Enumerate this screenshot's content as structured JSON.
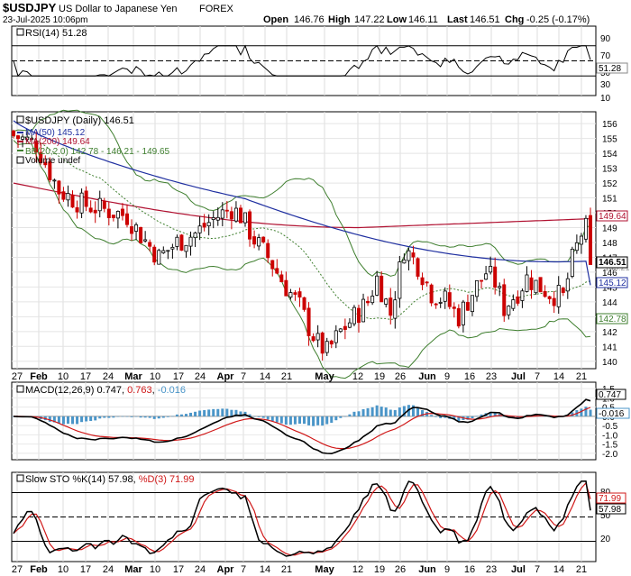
{
  "header": {
    "symbol": "$USDJPY",
    "name": "US Dollar to Japanese Yen",
    "exchange": "FOREX",
    "date": "23-Jul-2025 10:06pm",
    "open_label": "Open",
    "open": "146.76",
    "high_label": "High",
    "high": "147.22",
    "low_label": "Low",
    "low": "146.11",
    "last_label": "Last",
    "last": "146.51",
    "chg_label": "Chg",
    "chg": "-0.25 (-0.17%)"
  },
  "rsi": {
    "legend": "RSI(14) 51.28",
    "ticks": [
      90,
      70,
      50,
      30,
      10
    ],
    "last_badge": "51.28"
  },
  "price": {
    "legend_title": "$USDJPY (Daily) 146.51",
    "legend_ma50": "MA(50) 145.12",
    "legend_ma200": "MA(200) 149.64",
    "legend_bb": "BB(20,2.0) 142.78 - 146.21 - 149.65",
    "legend_volume": "Volume undef",
    "ticks": [
      156,
      155,
      154,
      153,
      152,
      151,
      150,
      149,
      148,
      147,
      146,
      145,
      144,
      143,
      142,
      141,
      140
    ],
    "badges": {
      "ma200": "149.64",
      "last": "146.51",
      "ma50": "145.12",
      "bb_lower": "142.78",
      "bb_mid": "146.21"
    }
  },
  "macd": {
    "legend_prefix": "MACD(12,26,9) 0.747, ",
    "legend_signal": "0.763",
    "legend_sep": ", ",
    "legend_hist": "-0.016",
    "ticks": [
      "1.5",
      "1.0",
      "0.5",
      "0.0",
      "-0.5",
      "-1.0",
      "-1.5",
      "-2.0"
    ],
    "badges": {
      "macd": "0.747",
      "hist": "-0.016"
    }
  },
  "sto": {
    "legend_prefix": "Slow STO %K(14) ",
    "legend_k": "57.98",
    "legend_sep": ", ",
    "legend_d": "%D(3) 71.99",
    "ticks": [
      80,
      50,
      20
    ],
    "badges": {
      "d": "71.99",
      "k": "57.98"
    }
  },
  "x_labels": [
    "27",
    "Feb",
    "10",
    "17",
    "24",
    "Mar",
    "10",
    "17",
    "24",
    "Apr",
    "7",
    "14",
    "21",
    "May",
    "12",
    "19",
    "26",
    "Jun",
    "9",
    "16",
    "23",
    "Jul",
    "7",
    "14",
    "21"
  ],
  "colors": {
    "bb": "#3f7f2f",
    "ma50": "#1f2fa0",
    "ma200": "#b01030",
    "macd_signal": "#d01818",
    "macd_hist": "#4a95c8",
    "sto_d": "#d01818"
  },
  "chart_data": {
    "type": "line",
    "ohlc_close": [
      {
        "date": "2025-01-28",
        "close": 155.2
      },
      {
        "date": "2025-02-03",
        "close": 154.6
      },
      {
        "date": "2025-02-10",
        "close": 152.3
      },
      {
        "date": "2025-02-17",
        "close": 150.3
      },
      {
        "date": "2025-02-24",
        "close": 150.6
      },
      {
        "date": "2025-03-03",
        "close": 148.0
      },
      {
        "date": "2025-03-10",
        "close": 148.6
      },
      {
        "date": "2025-03-17",
        "close": 149.4
      },
      {
        "date": "2025-03-24",
        "close": 149.8
      },
      {
        "date": "2025-04-01",
        "close": 149.6
      },
      {
        "date": "2025-04-07",
        "close": 147.2
      },
      {
        "date": "2025-04-14",
        "close": 142.5
      },
      {
        "date": "2025-04-21",
        "close": 142.6
      },
      {
        "date": "2025-05-01",
        "close": 145.0
      },
      {
        "date": "2025-05-12",
        "close": 147.5
      },
      {
        "date": "2025-05-19",
        "close": 144.6
      },
      {
        "date": "2025-05-26",
        "close": 144.0
      },
      {
        "date": "2025-06-02",
        "close": 144.0
      },
      {
        "date": "2025-06-09",
        "close": 144.5
      },
      {
        "date": "2025-06-16",
        "close": 145.3
      },
      {
        "date": "2025-06-23",
        "close": 144.5
      },
      {
        "date": "2025-07-01",
        "close": 144.0
      },
      {
        "date": "2025-07-07",
        "close": 146.2
      },
      {
        "date": "2025-07-14",
        "close": 148.5
      },
      {
        "date": "2025-07-23",
        "close": 146.51
      }
    ],
    "title": "$USDJPY US Dollar to Japanese Yen FOREX",
    "ylim_price": [
      139.5,
      156.8
    ],
    "rsi_levels": [
      70,
      50,
      30
    ],
    "sto_levels": [
      80,
      50,
      20
    ],
    "last": {
      "rsi": 51.28,
      "ma50": 145.12,
      "ma200": 149.64,
      "bb_upper": 149.65,
      "bb_mid": 146.21,
      "bb_lower": 142.78,
      "macd": 0.747,
      "signal": 0.763,
      "hist": -0.016,
      "sto_k": 57.98,
      "sto_d": 71.99
    }
  }
}
